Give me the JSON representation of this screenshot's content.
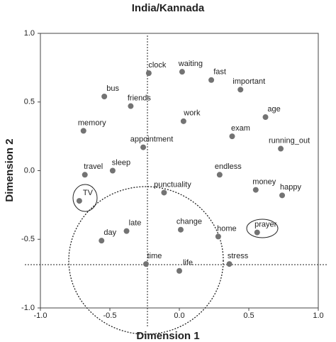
{
  "chart_data": {
    "type": "scatter",
    "title": "India/Kannada",
    "x_label": "Dimension 1",
    "y_label": "Dimension 2",
    "labels": [
      "clock",
      "waiting",
      "fast",
      "important",
      "bus",
      "friends",
      "age",
      "work",
      "memory",
      "exam",
      "appointment",
      "running_out",
      "sleep",
      "travel",
      "endless",
      "punctuality",
      "money",
      "happy",
      "TV",
      "late",
      "change",
      "home",
      "prayer",
      "day",
      "time",
      "stress",
      "life"
    ],
    "x": [
      -0.22,
      0.02,
      0.23,
      0.44,
      -0.54,
      -0.35,
      0.62,
      0.03,
      -0.69,
      0.38,
      -0.26,
      0.73,
      -0.48,
      -0.68,
      0.29,
      -0.11,
      0.55,
      0.74,
      -0.72,
      -0.38,
      0.01,
      0.28,
      0.56,
      -0.56,
      -0.24,
      0.36,
      0.0
    ],
    "y": [
      0.71,
      0.72,
      0.66,
      0.59,
      0.54,
      0.47,
      0.39,
      0.36,
      0.29,
      0.25,
      0.17,
      0.16,
      0.0,
      -0.03,
      -0.03,
      -0.16,
      -0.14,
      -0.18,
      -0.22,
      -0.44,
      -0.43,
      -0.48,
      -0.45,
      -0.51,
      -0.68,
      -0.68,
      -0.73
    ],
    "color": "#737373",
    "xlim": [
      -1,
      1
    ],
    "ylim": [
      -1,
      1
    ],
    "xticks": [
      {
        "value": -1,
        "label": "-1.0"
      },
      {
        "value": -0.5,
        "label": "-0.5"
      },
      {
        "value": 0,
        "label": "0.0"
      },
      {
        "value": 0.5,
        "label": "0.5"
      },
      {
        "value": 1,
        "label": "1.0"
      }
    ],
    "yticks": [
      {
        "value": -1,
        "label": "-1.0"
      },
      {
        "value": -0.5,
        "label": "-0.5"
      },
      {
        "value": 0,
        "label": "0.0"
      },
      {
        "value": 0.5,
        "label": "0.5"
      },
      {
        "value": 1,
        "label": "1.0"
      }
    ]
  }
}
